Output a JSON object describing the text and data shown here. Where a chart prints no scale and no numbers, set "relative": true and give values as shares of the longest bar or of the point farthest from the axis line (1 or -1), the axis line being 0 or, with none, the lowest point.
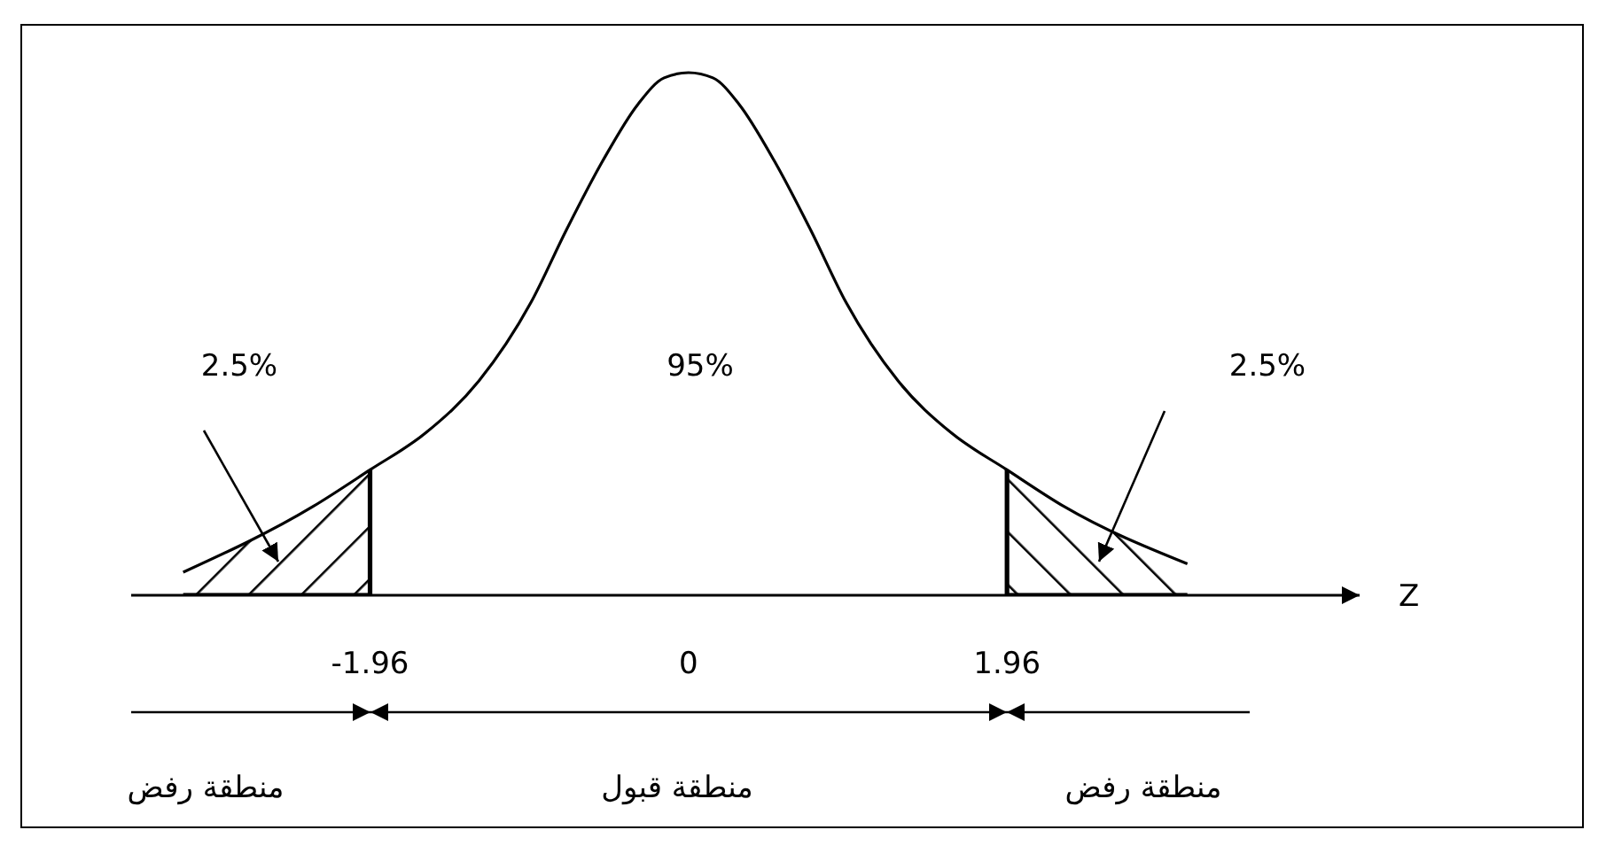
{
  "chart_data": {
    "type": "line",
    "relative": true,
    "xlabel": "Z",
    "xlim": [
      -3.43,
      4.13
    ],
    "xticks": [
      -1.96,
      0,
      1.96
    ],
    "series": [
      {
        "color": "#000000",
        "x": [
          -3.11,
          -2.31,
          -1.96,
          -1.62,
          -1.29,
          -0.97,
          -0.75,
          -0.53,
          -0.31,
          -0.15,
          0,
          0.15,
          0.31,
          0.53,
          0.75,
          0.97,
          1.29,
          1.62,
          1.96,
          2.31,
          3.07
        ],
        "values": [
          0.044,
          0.17,
          0.24,
          0.31,
          0.41,
          0.56,
          0.7,
          0.83,
          0.94,
          0.99,
          1,
          0.99,
          0.94,
          0.83,
          0.7,
          0.56,
          0.41,
          0.31,
          0.24,
          0.17,
          0.06
        ]
      }
    ],
    "bands": [
      {
        "axis": "x",
        "from": -3.43,
        "to": -1.96,
        "color": "#000000"
      },
      {
        "axis": "x",
        "from": 1.96,
        "to": 3.46,
        "color": "#000000"
      }
    ],
    "annotations": [
      "2.5%",
      "95%",
      "2.5%",
      "منطقة رفض",
      "منطقة قبول",
      "منطقة رفض"
    ],
    "line_style": "solid"
  }
}
